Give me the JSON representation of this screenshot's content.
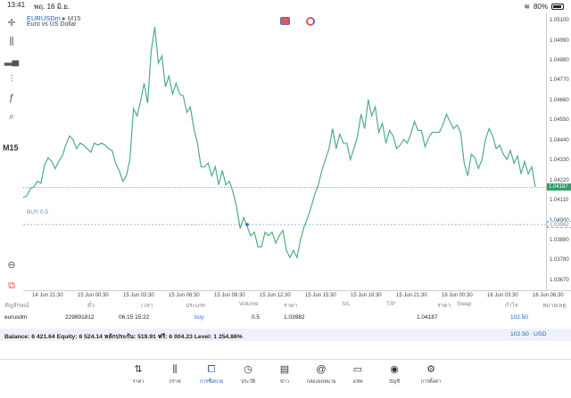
{
  "status": {
    "time": "13:41",
    "date": "พฤ. 16 มิ.ย.",
    "battery": "80%"
  },
  "symbol": {
    "name": "EURUSDm",
    "separator": "▸",
    "timeframe": "M15",
    "description": "Euro vs US Dollar"
  },
  "toolbar": {
    "timeframe": "M15"
  },
  "buy_line": {
    "label": "BUY 0.5"
  },
  "price_axis": {
    "labels": [
      "1.05100",
      "1.04990",
      "1.04880",
      "1.04770",
      "1.04660",
      "1.04550",
      "1.04440",
      "1.04330",
      "1.04220",
      "1.04110",
      "1.04000",
      "1.03890",
      "1.03780",
      "1.03670"
    ],
    "current": "1.04187",
    "buy": "1.03982"
  },
  "time_axis": [
    "14 Jun 21:30",
    "15 Jun 00:30",
    "15 Jun 03:30",
    "15 Jun 06:30",
    "15 Jun 09:30",
    "15 Jun 12:30",
    "15 Jun 15:30",
    "15 Jun 18:30",
    "15 Jun 21:30",
    "16 Jun 00:30",
    "16 Jun 03:30",
    "16 Jun 06:30"
  ],
  "trade_table": {
    "headers": [
      "สัญลักษณ์",
      "ตั๋ว",
      "เวลา",
      "ประเภท",
      "Volume",
      "ราคา",
      "S/L",
      "T/P",
      "ราคา",
      "Swap",
      "กำไร",
      "หมายเหตุ"
    ],
    "row": {
      "symbol": "eurusdm",
      "ticket": "229891812",
      "time": "06.15 15:22",
      "type": "buy",
      "volume": "0.5",
      "open_price": "1.03982",
      "sl": "",
      "tp": "",
      "price": "1.04187",
      "swap": "",
      "profit": "102.50",
      "comment": ""
    }
  },
  "balance": {
    "text": "Balance: 6 421.64 Equity: 6 524.14 หลักประกัน: 519.91 ฟรี: 6 004.23 Level: 1 254.86%",
    "total": "102.50",
    "currency": "USD"
  },
  "nav": [
    {
      "label": "ราคา",
      "icon": "arrows-updown-icon"
    },
    {
      "label": "กราฟ",
      "icon": "candles-icon"
    },
    {
      "label": "การซื้อขาย",
      "icon": "trade-chart-icon",
      "active": true
    },
    {
      "label": "ประวัติ",
      "icon": "history-icon"
    },
    {
      "label": "ข่าว",
      "icon": "news-icon"
    },
    {
      "label": "กล่องจดหมาย",
      "icon": "mail-at-icon"
    },
    {
      "label": "แชท",
      "icon": "chat-icon"
    },
    {
      "label": "บัญชี",
      "icon": "account-icon"
    },
    {
      "label": "การตั้งค่า",
      "icon": "gear-icon"
    }
  ],
  "chart_data": {
    "type": "line",
    "series": [
      {
        "values": [
          1.0413,
          1.0414,
          1.0418,
          1.0419,
          1.0422,
          1.0421,
          1.0431,
          1.0435,
          1.0433,
          1.0429,
          1.0433,
          1.0436,
          1.0442,
          1.0447,
          1.0445,
          1.044,
          1.0443,
          1.0442,
          1.044,
          1.0438,
          1.0443,
          1.0442,
          1.0443,
          1.0442,
          1.044,
          1.0439,
          1.0432,
          1.0428,
          1.0422,
          1.0425,
          1.0434,
          1.0462,
          1.0458,
          1.0466,
          1.0476,
          1.0465,
          1.0494,
          1.0507,
          1.0487,
          1.0491,
          1.0474,
          1.048,
          1.047,
          1.0476,
          1.047,
          1.0469,
          1.046,
          1.0463,
          1.0451,
          1.0443,
          1.043,
          1.043,
          1.0432,
          1.0425,
          1.043,
          1.042,
          1.0428,
          1.042,
          1.0422,
          1.0416,
          1.0408,
          1.0396,
          1.0402,
          1.0397,
          1.0392,
          1.0394,
          1.0386,
          1.0386,
          1.0394,
          1.0392,
          1.0394,
          1.0388,
          1.0392,
          1.0395,
          1.0384,
          1.038,
          1.0384,
          1.038,
          1.039,
          1.0397,
          1.0402,
          1.0408,
          1.0415,
          1.042,
          1.0428,
          1.0434,
          1.044,
          1.0451,
          1.044,
          1.0448,
          1.0443,
          1.0443,
          1.0434,
          1.044,
          1.0447,
          1.0459,
          1.0451,
          1.0467,
          1.0458,
          1.0463,
          1.0449,
          1.0454,
          1.0443,
          1.045,
          1.0447,
          1.044,
          1.0442,
          1.0445,
          1.0443,
          1.0448,
          1.0455,
          1.045,
          1.045,
          1.0441,
          1.0446,
          1.0449,
          1.0449,
          1.0449,
          1.0453,
          1.0459,
          1.0455,
          1.0451,
          1.0453,
          1.0449,
          1.0432,
          1.0425,
          1.0437,
          1.0435,
          1.0429,
          1.0434,
          1.0445,
          1.0451,
          1.0447,
          1.044,
          1.0442,
          1.0437,
          1.0434,
          1.0439,
          1.0432,
          1.0436,
          1.0426,
          1.0433,
          1.0426,
          1.043,
          1.0419
        ]
      }
    ],
    "ylim": [
      1.0362,
      1.0515
    ],
    "current_price": 1.04187,
    "buy_price": 1.03982,
    "grid": false
  }
}
